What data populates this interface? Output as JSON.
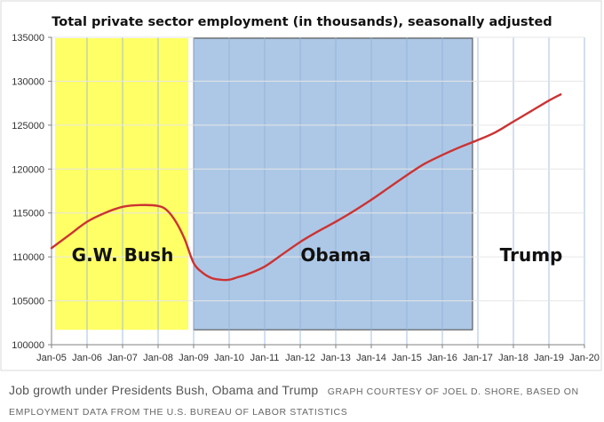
{
  "chart_data": {
    "type": "line",
    "title": "Total private sector employment (in thousands), seasonally adjusted",
    "xlabel": "",
    "ylabel": "",
    "x_ticks": [
      "Jan-05",
      "Jan-06",
      "Jan-07",
      "Jan-08",
      "Jan-09",
      "Jan-10",
      "Jan-11",
      "Jan-12",
      "Jan-13",
      "Jan-14",
      "Jan-15",
      "Jan-16",
      "Jan-17",
      "Jan-18",
      "Jan-19",
      "Jan-20"
    ],
    "y_ticks": [
      "100000",
      "105000",
      "110000",
      "115000",
      "120000",
      "125000",
      "130000",
      "135000"
    ],
    "ylim": [
      100000,
      135000
    ],
    "xlim": [
      2005.0,
      2020.0
    ],
    "grid": true,
    "series": [
      {
        "name": "Total private sector employment",
        "color": "#cc3333",
        "x": [
          2005.0,
          2005.5,
          2006.0,
          2006.5,
          2007.0,
          2007.5,
          2008.0,
          2008.25,
          2008.5,
          2008.75,
          2009.0,
          2009.25,
          2009.5,
          2009.75,
          2010.0,
          2010.25,
          2010.5,
          2011.0,
          2011.5,
          2012.0,
          2012.5,
          2013.0,
          2013.5,
          2014.0,
          2014.5,
          2015.0,
          2015.5,
          2016.0,
          2016.5,
          2017.0,
          2017.5,
          2018.0,
          2018.5,
          2019.0,
          2019.33
        ],
        "values": [
          111000,
          112500,
          114000,
          115000,
          115700,
          115900,
          115800,
          115300,
          114000,
          112000,
          109300,
          108200,
          107600,
          107400,
          107400,
          107700,
          108000,
          108900,
          110300,
          111700,
          112900,
          114000,
          115200,
          116500,
          117900,
          119300,
          120600,
          121600,
          122500,
          123300,
          124200,
          125400,
          126600,
          127800,
          128500
        ]
      }
    ],
    "regions": [
      {
        "label": "G.W. Bush",
        "start": 2005.0,
        "end": 2009.0,
        "color": "#ffff66"
      },
      {
        "label": "Obama",
        "start": 2009.0,
        "end": 2017.0,
        "color": "#adc8e6"
      },
      {
        "label": "Trump",
        "start": 2017.0,
        "end": 2020.0,
        "color": "#ffffff"
      }
    ]
  },
  "caption": {
    "main": "Job growth under Presidents Bush, Obama and Trump",
    "credit": "GRAPH COURTESY OF JOEL D. SHORE, BASED ON EMPLOYMENT DATA FROM THE U.S. BUREAU OF LABOR STATISTICS"
  }
}
